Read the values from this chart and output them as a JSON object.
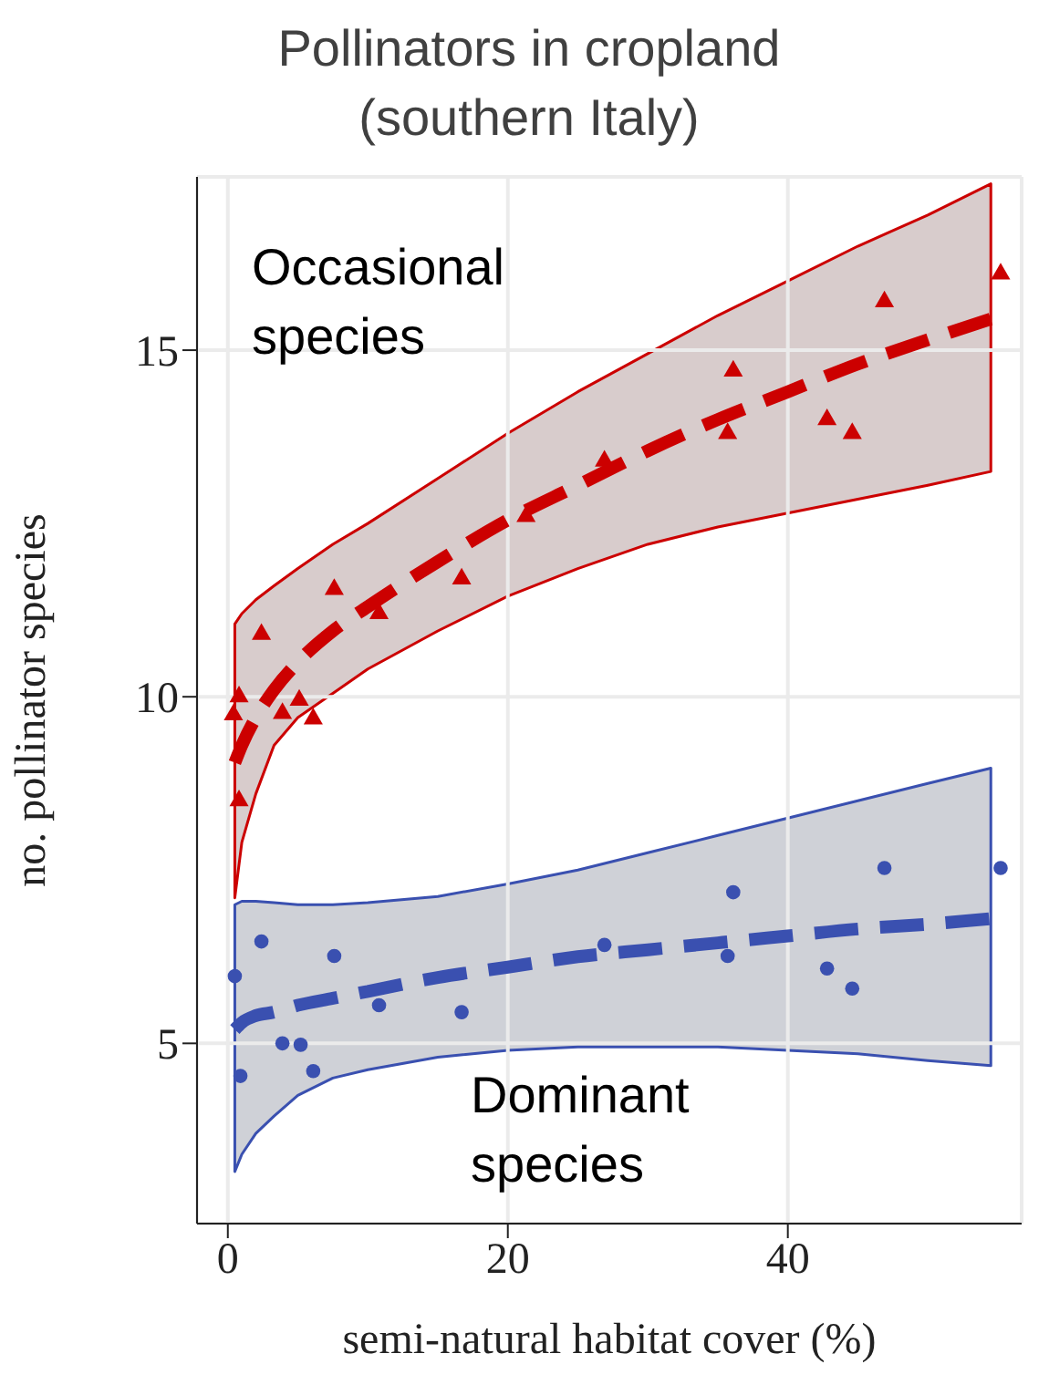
{
  "chart_data": {
    "type": "line",
    "title": "Pollinators in cropland (southern Italy)",
    "xlabel": "semi-natural habitat cover (%)",
    "ylabel": "no. pollinator species",
    "annotations": [
      "Occasional species",
      "Dominant species"
    ],
    "xlim": [
      -2.2,
      56.7
    ],
    "ylim": [
      2.4,
      17.5
    ],
    "xticks": [
      0,
      20,
      40
    ],
    "yticks": [
      5,
      10,
      15
    ],
    "grid": true,
    "series": [
      {
        "color": "#cc0000",
        "line_style": "dashed",
        "marker": "none",
        "x": [
          0.5,
          1,
          2,
          3.3,
          5,
          7.5,
          10,
          15,
          20,
          25,
          30,
          35,
          40,
          45,
          50,
          54.5
        ],
        "values": [
          9.05,
          9.3,
          9.7,
          10.1,
          10.5,
          10.95,
          11.3,
          11.95,
          12.55,
          13.05,
          13.55,
          14.0,
          14.4,
          14.8,
          15.15,
          15.45
        ],
        "lower": [
          7.1,
          7.9,
          8.6,
          9.3,
          9.7,
          10.05,
          10.4,
          10.95,
          11.45,
          11.85,
          12.2,
          12.45,
          12.65,
          12.85,
          13.05,
          13.25
        ],
        "upper": [
          11.05,
          11.2,
          11.4,
          11.6,
          11.85,
          12.2,
          12.5,
          13.15,
          13.8,
          14.4,
          14.95,
          15.5,
          16.0,
          16.5,
          16.95,
          17.4
        ]
      },
      {
        "color": "#3a50b0",
        "line_style": "dashed",
        "marker": "none",
        "x": [
          0.5,
          1,
          2,
          3.3,
          5,
          7.5,
          10,
          15,
          20,
          25,
          30,
          35,
          40,
          45,
          50,
          54.5
        ],
        "values": [
          5.2,
          5.3,
          5.4,
          5.45,
          5.55,
          5.65,
          5.75,
          5.95,
          6.1,
          6.25,
          6.35,
          6.45,
          6.55,
          6.65,
          6.72,
          6.8
        ],
        "lower": [
          3.15,
          3.4,
          3.7,
          3.95,
          4.25,
          4.5,
          4.62,
          4.8,
          4.9,
          4.95,
          4.95,
          4.95,
          4.9,
          4.85,
          4.75,
          4.68
        ],
        "upper": [
          7.0,
          7.05,
          7.05,
          7.03,
          7.0,
          7.0,
          7.03,
          7.12,
          7.3,
          7.5,
          7.75,
          8.0,
          8.25,
          8.5,
          8.75,
          8.97
        ]
      },
      {
        "type": "scatter",
        "color": "#cc0000",
        "marker": "triangle",
        "x": [
          55.2,
          46.9,
          36.1,
          35.7,
          42.8,
          44.6,
          26.9,
          21.3,
          16.7,
          7.6,
          10.8,
          2.4,
          0.8,
          0.4,
          3.9,
          5.1,
          6.1,
          0.8
        ],
        "values": [
          16.1,
          15.7,
          14.7,
          13.8,
          14.0,
          13.8,
          13.4,
          12.6,
          11.7,
          11.55,
          11.2,
          10.9,
          10.0,
          9.74,
          9.76,
          9.95,
          9.68,
          8.5
        ]
      },
      {
        "type": "scatter",
        "color": "#3a50b0",
        "marker": "circle",
        "x": [
          36.1,
          46.9,
          55.2,
          2.4,
          0.5,
          7.6,
          10.8,
          16.7,
          26.9,
          35.7,
          42.8,
          44.6,
          3.9,
          5.2,
          6.1,
          0.9
        ],
        "values": [
          7.18,
          7.53,
          7.53,
          6.47,
          5.97,
          6.26,
          5.55,
          5.45,
          6.42,
          6.26,
          6.08,
          5.79,
          5.0,
          4.98,
          4.6,
          4.53
        ]
      }
    ]
  }
}
